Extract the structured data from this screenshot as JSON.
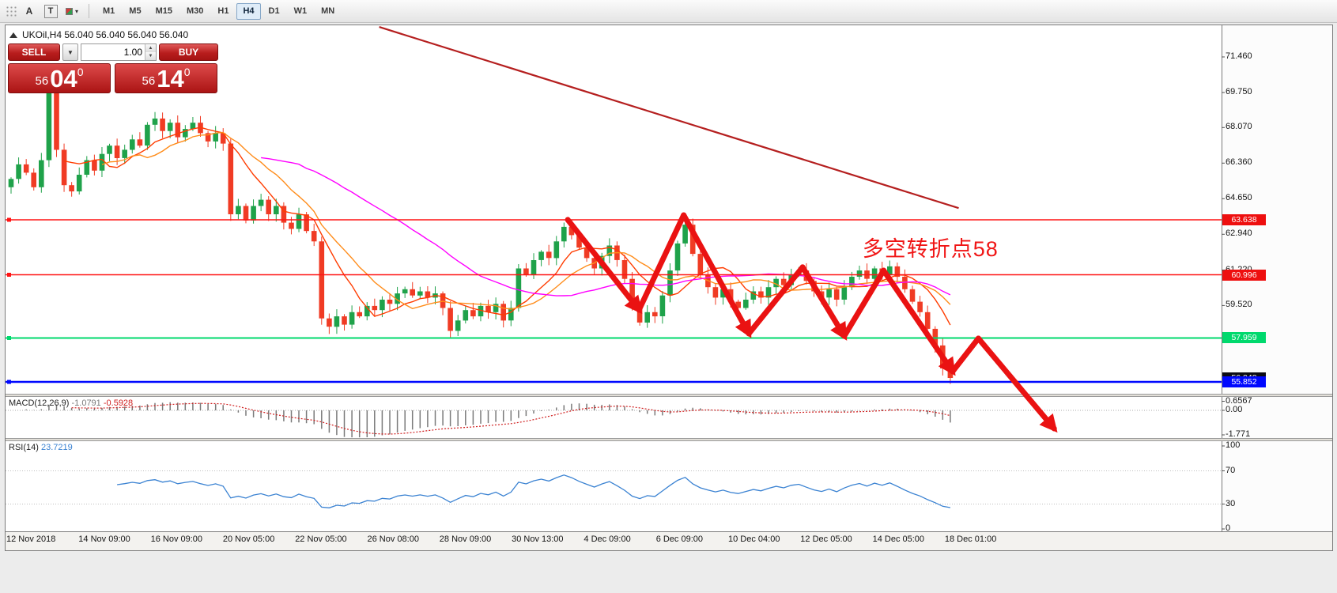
{
  "toolbar": {
    "font_tool_label": "A",
    "text_tool_label": "T",
    "timeframes": [
      "M1",
      "M5",
      "M15",
      "M30",
      "H1",
      "H4",
      "D1",
      "W1",
      "MN"
    ],
    "active_timeframe": "H4"
  },
  "chart": {
    "symbol_title": "UKOil,H4 56.040 56.040 56.040 56.040",
    "trade_panel": {
      "sell_label": "SELL",
      "buy_label": "BUY",
      "volume": "1.00",
      "sell_price": {
        "small": "56",
        "big": "04",
        "sup": "0"
      },
      "buy_price": {
        "small": "56",
        "big": "14",
        "sup": "0"
      }
    },
    "annotation": {
      "text": "多空转折点58",
      "color": "#f01515",
      "i": 112.4,
      "price": 62.45
    },
    "price_axis_ticks": [
      "71.460",
      "69.750",
      "68.070",
      "66.360",
      "64.650",
      "62.940",
      "61.220",
      "59.520"
    ],
    "price_badges": [
      {
        "label": "63.638",
        "price": 63.638,
        "bg": "#ee0f0f",
        "fg": "#ffffff"
      },
      {
        "label": "60.996",
        "price": 60.996,
        "bg": "#ee0f0f",
        "fg": "#ffffff"
      },
      {
        "label": "57.959",
        "price": 57.959,
        "bg": "#00d96d",
        "fg": "#ffffff"
      },
      {
        "label": "56.040",
        "price": 56.04,
        "bg": "#0c0c14",
        "fg": "#ffffff"
      },
      {
        "label": "55.852",
        "price": 55.852,
        "bg": "#0008ff",
        "fg": "#ffffff"
      }
    ]
  },
  "macd": {
    "name": "MACD(12,26,9)",
    "value_main": "-1.0791",
    "value_signal": "-0.5928",
    "axis": [
      {
        "label": "0.6567",
        "v": 0.6567
      },
      {
        "label": "0.00",
        "v": 0
      },
      {
        "label": "-1.771",
        "v": -1.771
      }
    ]
  },
  "rsi": {
    "name": "RSI(14)",
    "value": "23.7219",
    "axis": [
      {
        "label": "100",
        "v": 100
      },
      {
        "label": "70",
        "v": 70
      },
      {
        "label": "30",
        "v": 30
      },
      {
        "label": "0",
        "v": 0
      }
    ],
    "levels": [
      70,
      30
    ]
  },
  "time_axis": [
    "12 Nov 2018",
    "14 Nov 09:00",
    "16 Nov 09:00",
    "20 Nov 05:00",
    "22 Nov 05:00",
    "26 Nov 08:00",
    "28 Nov 09:00",
    "30 Nov 13:00",
    "4 Dec 09:00",
    "6 Dec 09:00",
    "10 Dec 04:00",
    "12 Dec 05:00",
    "14 Dec 05:00",
    "18 Dec 01:00"
  ],
  "chart_data": {
    "type": "candlestick",
    "symbol": "UKOil",
    "timeframe": "H4",
    "title": "UKOil,H4",
    "price_range_visible": [
      55.3,
      72.9
    ],
    "closes": [
      65.6,
      66.3,
      65.9,
      65.2,
      66.5,
      69.9,
      67.0,
      65.3,
      65.0,
      65.8,
      66.5,
      66.0,
      66.8,
      67.2,
      66.6,
      67.0,
      67.5,
      67.2,
      68.2,
      68.5,
      67.9,
      68.3,
      67.6,
      68.0,
      68.3,
      67.8,
      67.4,
      67.8,
      67.3,
      63.9,
      64.3,
      63.6,
      64.3,
      64.6,
      63.9,
      64.3,
      63.5,
      63.2,
      63.9,
      63.1,
      62.6,
      58.9,
      58.5,
      59.0,
      58.6,
      59.2,
      59.0,
      59.5,
      59.3,
      59.8,
      59.6,
      60.1,
      60.3,
      60.0,
      60.2,
      59.9,
      60.1,
      59.4,
      58.3,
      58.8,
      59.3,
      59.0,
      59.5,
      59.2,
      59.6,
      58.8,
      59.4,
      61.3,
      61.0,
      61.7,
      62.1,
      61.8,
      62.6,
      63.3,
      62.9,
      62.3,
      61.8,
      61.3,
      61.9,
      62.4,
      61.7,
      60.8,
      59.4,
      58.7,
      59.2,
      59.0,
      60.0,
      61.2,
      62.5,
      63.4,
      62.0,
      61.0,
      60.4,
      59.9,
      60.3,
      59.7,
      59.4,
      59.8,
      60.2,
      59.9,
      60.4,
      60.8,
      60.5,
      61.0,
      61.2,
      60.7,
      60.2,
      59.9,
      60.3,
      59.8,
      60.4,
      60.9,
      61.2,
      60.8,
      61.3,
      61.0,
      61.4,
      60.9,
      60.3,
      59.7,
      59.2,
      58.4,
      57.6,
      56.5,
      56.04
    ],
    "up_color": "#1fa24a",
    "down_color": "#f03b24",
    "ma_overlays": [
      {
        "period": 8,
        "color": "#ff3c00"
      },
      {
        "period": 13,
        "color": "#ff8c1a"
      },
      {
        "period": 34,
        "color": "#ff00ff"
      }
    ],
    "hlines": [
      {
        "price": 63.638,
        "color": "#ff1414",
        "width": 1.6
      },
      {
        "price": 60.996,
        "color": "#ff1414",
        "width": 1.6
      },
      {
        "price": 57.959,
        "color": "#00d96d",
        "width": 2
      },
      {
        "price": 55.852,
        "color": "#0008ff",
        "width": 2.6
      }
    ],
    "trendline": {
      "i1": 48.6,
      "p1": 72.9,
      "i2": 125.1,
      "p2": 64.2,
      "color": "#b51f1f",
      "width": 2.2
    },
    "zigzag": {
      "color": "#ea1212",
      "width": 7,
      "points": [
        {
          "i": 73.5,
          "p": 63.64
        },
        {
          "i": 82.9,
          "p": 59.31
        },
        {
          "i": 88.8,
          "p": 63.86
        },
        {
          "i": 97.4,
          "p": 58.17
        },
        {
          "i": 104.5,
          "p": 61.36
        },
        {
          "i": 110.0,
          "p": 58.05
        },
        {
          "i": 115.2,
          "p": 61.2
        },
        {
          "i": 124.3,
          "p": 56.35
        },
        {
          "i": 127.7,
          "p": 57.94
        },
        {
          "i": 137.7,
          "p": 53.61
        }
      ],
      "arrowhead_points": [
        1,
        3,
        5,
        7,
        9
      ]
    },
    "indicators": {
      "macd": {
        "fast": 12,
        "slow": 26,
        "signal": 9,
        "histogram_color": "#7a7a7a",
        "signal_color": "#d02020",
        "last_main": -1.0791,
        "last_signal": -0.5928,
        "scale": [
          -1.771,
          0.6567
        ]
      },
      "rsi": {
        "period": 14,
        "color": "#3a82d2",
        "last": 23.7219,
        "scale": [
          0,
          100
        ],
        "levels": [
          70,
          30
        ]
      }
    }
  }
}
